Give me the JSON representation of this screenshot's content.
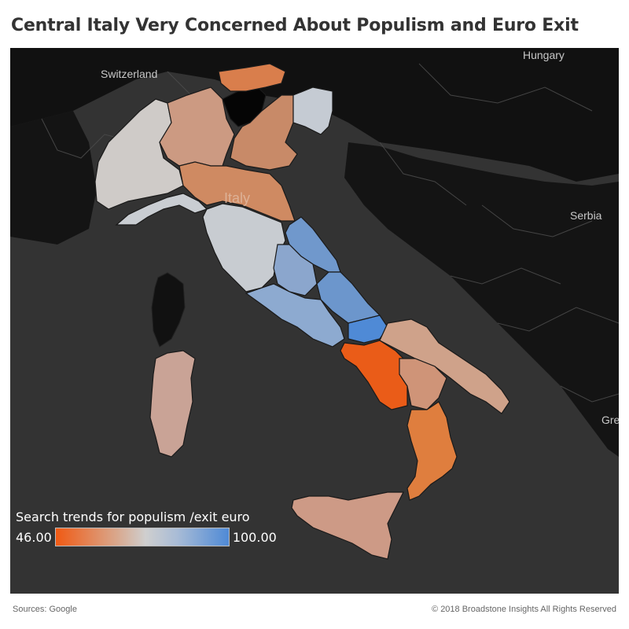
{
  "title": "Central Italy Very Concerned About Populism and Euro Exit",
  "map": {
    "country_labels": {
      "switzerland": "Switzerland",
      "hungary": "Hungary",
      "serbia": "Serbia",
      "italy": "Italy",
      "greece_partial": "Gre"
    },
    "colors": {
      "background": "#2e2e2e",
      "high": "#4f8ad6",
      "low": "#f05a14",
      "neutral": "#cfcfcf"
    }
  },
  "legend": {
    "title": "Search trends for populism /exit euro",
    "min": "46.00",
    "max": "100.00"
  },
  "footer": {
    "source": "Sources: Google",
    "copyright": "© 2018 Broadstone Insights All Rights Reserved"
  }
}
